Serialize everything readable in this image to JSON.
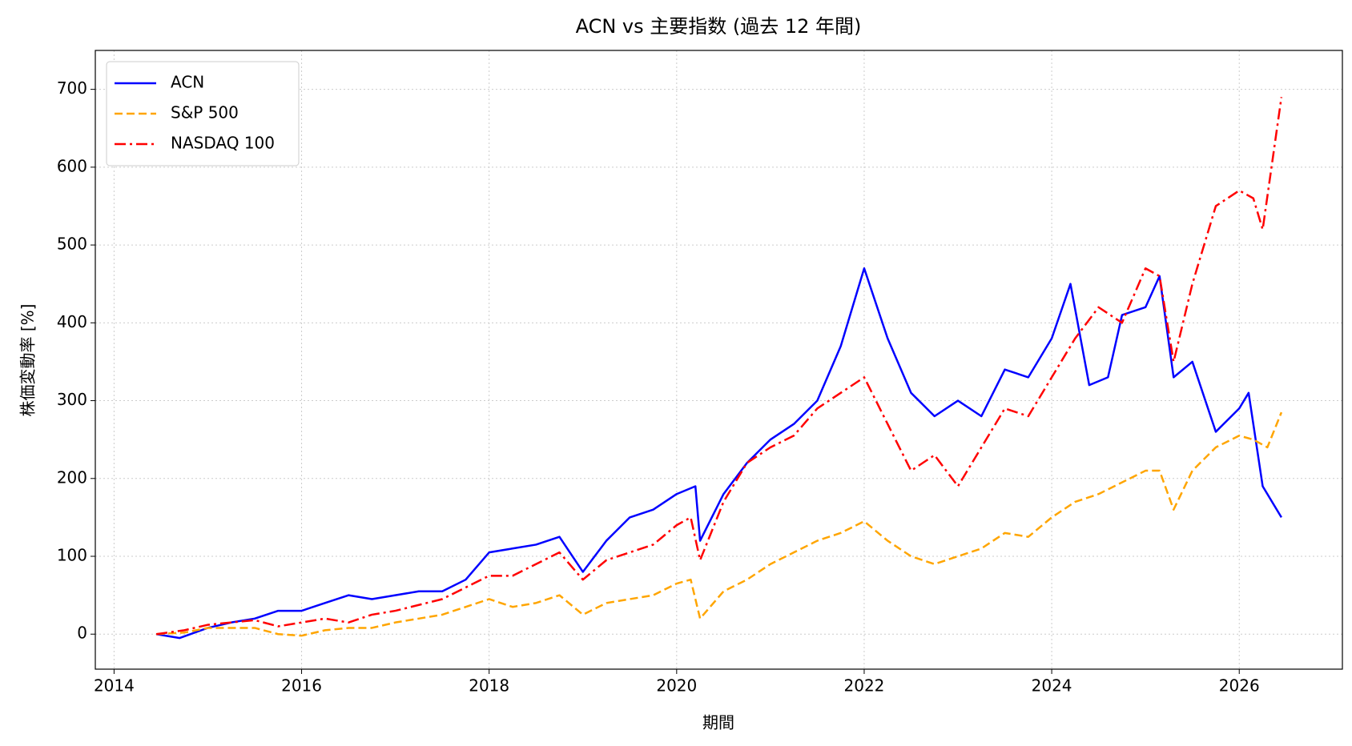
{
  "chart_data": {
    "type": "line",
    "title": "ACN vs 主要指数 (過去 12 年間)",
    "xlabel": "期間",
    "ylabel": "株価変動率 [%]",
    "xlim": [
      2013.8,
      2027.1
    ],
    "xticks": [
      2014,
      2016,
      2018,
      2020,
      2022,
      2024,
      2026
    ],
    "ylim": [
      -45,
      750
    ],
    "yticks": [
      0,
      100,
      200,
      300,
      400,
      500,
      600,
      700
    ],
    "grid": true,
    "legend": "upper-left",
    "series": [
      {
        "name": "ACN",
        "color": "#0000ff",
        "linestyle": "solid",
        "x": [
          2014.45,
          2014.7,
          2015.0,
          2015.25,
          2015.5,
          2015.75,
          2016.0,
          2016.25,
          2016.5,
          2016.75,
          2017.0,
          2017.25,
          2017.5,
          2017.75,
          2018.0,
          2018.25,
          2018.5,
          2018.75,
          2019.0,
          2019.25,
          2019.5,
          2019.75,
          2020.0,
          2020.2,
          2020.25,
          2020.5,
          2020.75,
          2021.0,
          2021.25,
          2021.5,
          2021.75,
          2022.0,
          2022.25,
          2022.5,
          2022.75,
          2023.0,
          2023.25,
          2023.5,
          2023.75,
          2024.0,
          2024.2,
          2024.4,
          2024.6,
          2024.75,
          2025.0,
          2025.15,
          2025.3,
          2025.5,
          2025.75,
          2026.0,
          2026.1,
          2026.25,
          2026.45
        ],
        "values": [
          0,
          -5,
          8,
          15,
          20,
          30,
          30,
          40,
          50,
          45,
          50,
          55,
          55,
          70,
          105,
          110,
          115,
          125,
          80,
          120,
          150,
          160,
          180,
          190,
          120,
          180,
          220,
          250,
          270,
          300,
          370,
          470,
          380,
          310,
          280,
          300,
          280,
          340,
          330,
          380,
          450,
          320,
          330,
          410,
          420,
          460,
          330,
          350,
          260,
          290,
          310,
          190,
          150
        ]
      },
      {
        "name": "S&P 500",
        "color": "#ffa500",
        "linestyle": "dashed",
        "x": [
          2014.45,
          2014.75,
          2015.0,
          2015.5,
          2015.75,
          2016.0,
          2016.25,
          2016.5,
          2016.75,
          2017.0,
          2017.5,
          2018.0,
          2018.25,
          2018.5,
          2018.75,
          2019.0,
          2019.25,
          2019.5,
          2019.75,
          2020.0,
          2020.15,
          2020.25,
          2020.5,
          2020.75,
          2021.0,
          2021.25,
          2021.5,
          2021.75,
          2022.0,
          2022.25,
          2022.5,
          2022.75,
          2023.0,
          2023.25,
          2023.5,
          2023.75,
          2024.0,
          2024.25,
          2024.5,
          2024.75,
          2025.0,
          2025.15,
          2025.3,
          2025.5,
          2025.75,
          2026.0,
          2026.15,
          2026.3,
          2026.45
        ],
        "values": [
          0,
          2,
          8,
          8,
          0,
          -2,
          5,
          8,
          8,
          15,
          25,
          45,
          35,
          40,
          50,
          25,
          40,
          45,
          50,
          65,
          70,
          20,
          55,
          70,
          90,
          105,
          120,
          130,
          145,
          120,
          100,
          90,
          100,
          110,
          130,
          125,
          150,
          170,
          180,
          195,
          210,
          210,
          160,
          210,
          240,
          255,
          250,
          240,
          285
        ]
      },
      {
        "name": "NASDAQ 100",
        "color": "#ff0000",
        "linestyle": "dashdot",
        "x": [
          2014.45,
          2014.75,
          2015.0,
          2015.5,
          2015.75,
          2016.0,
          2016.25,
          2016.5,
          2016.75,
          2017.0,
          2017.5,
          2018.0,
          2018.25,
          2018.5,
          2018.75,
          2019.0,
          2019.25,
          2019.5,
          2019.75,
          2020.0,
          2020.15,
          2020.25,
          2020.5,
          2020.75,
          2021.0,
          2021.25,
          2021.5,
          2021.75,
          2022.0,
          2022.25,
          2022.5,
          2022.75,
          2023.0,
          2023.25,
          2023.5,
          2023.75,
          2024.0,
          2024.25,
          2024.5,
          2024.75,
          2025.0,
          2025.15,
          2025.3,
          2025.5,
          2025.75,
          2026.0,
          2026.15,
          2026.25,
          2026.45
        ],
        "values": [
          0,
          5,
          12,
          18,
          10,
          15,
          20,
          15,
          25,
          30,
          45,
          75,
          75,
          90,
          105,
          70,
          95,
          105,
          115,
          140,
          150,
          95,
          170,
          220,
          240,
          255,
          290,
          310,
          330,
          270,
          210,
          230,
          190,
          240,
          290,
          280,
          330,
          380,
          420,
          400,
          470,
          460,
          350,
          450,
          550,
          570,
          560,
          520,
          690
        ]
      }
    ]
  }
}
